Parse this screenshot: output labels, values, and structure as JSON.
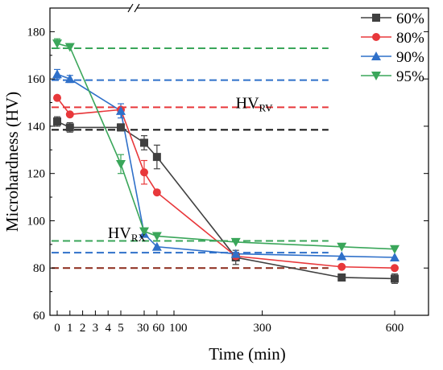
{
  "chart_data": {
    "type": "line",
    "xlabel": "Time (min)",
    "ylabel": "Microhardness (HV)",
    "ylim": [
      60,
      190
    ],
    "yticks": [
      60,
      80,
      100,
      120,
      140,
      160,
      180
    ],
    "x_axis_note": "broken axis: 0–5 min on expanded scale, then 30–600 min",
    "xticks": [
      "0",
      "1",
      "2",
      "3",
      "4",
      "5",
      "30",
      "60",
      "100",
      "300",
      "600"
    ],
    "legend_position": "top-right",
    "x": [
      0,
      1,
      5,
      30,
      60,
      240,
      480,
      600
    ],
    "series": [
      {
        "name": "60%",
        "color": "#404040",
        "marker": "square",
        "values": [
          142,
          139.5,
          139.5,
          133,
          127,
          84.5,
          76,
          75.5
        ],
        "errors": [
          2,
          2,
          1.5,
          3,
          5,
          3,
          1.5,
          2
        ]
      },
      {
        "name": "80%",
        "color": "#e8383b",
        "marker": "circle",
        "values": [
          152,
          145,
          147,
          120.5,
          112,
          85,
          80.5,
          80
        ],
        "errors": [
          0,
          0,
          0,
          5,
          0,
          0,
          0,
          0
        ]
      },
      {
        "name": "90%",
        "color": "#2f70c9",
        "marker": "triangle-up",
        "values": [
          162,
          160,
          146.5,
          94.5,
          89,
          86,
          85,
          84.5
        ],
        "errors": [
          2,
          1.5,
          3,
          0,
          0,
          0,
          0,
          0
        ]
      },
      {
        "name": "95%",
        "color": "#3aa65a",
        "marker": "triangle-down",
        "values": [
          175,
          173.5,
          124,
          95.5,
          93.5,
          91,
          89,
          88
        ],
        "errors": [
          2,
          0,
          4,
          0,
          0,
          0,
          0,
          0
        ]
      }
    ],
    "reference_lines": [
      {
        "y": 173,
        "color": "#3aa65a",
        "x_to": 450
      },
      {
        "y": 159.5,
        "color": "#2f70c9",
        "x_to": 450
      },
      {
        "y": 148,
        "color": "#e8383b",
        "x_to": 450
      },
      {
        "y": 138.5,
        "color": "#111111",
        "x_to": 450
      },
      {
        "y": 91.5,
        "color": "#3aa65a",
        "x_to": 450
      },
      {
        "y": 86.5,
        "color": "#2f70c9",
        "x_to": 450
      },
      {
        "y": 80,
        "color": "#8b2a1a",
        "x_to": 450
      }
    ],
    "annotations": [
      {
        "main": "HV",
        "sub": "RV",
        "x": 300,
        "y": 150
      },
      {
        "main": "HV",
        "sub": "RX",
        "x": 20,
        "y": 95
      }
    ]
  }
}
